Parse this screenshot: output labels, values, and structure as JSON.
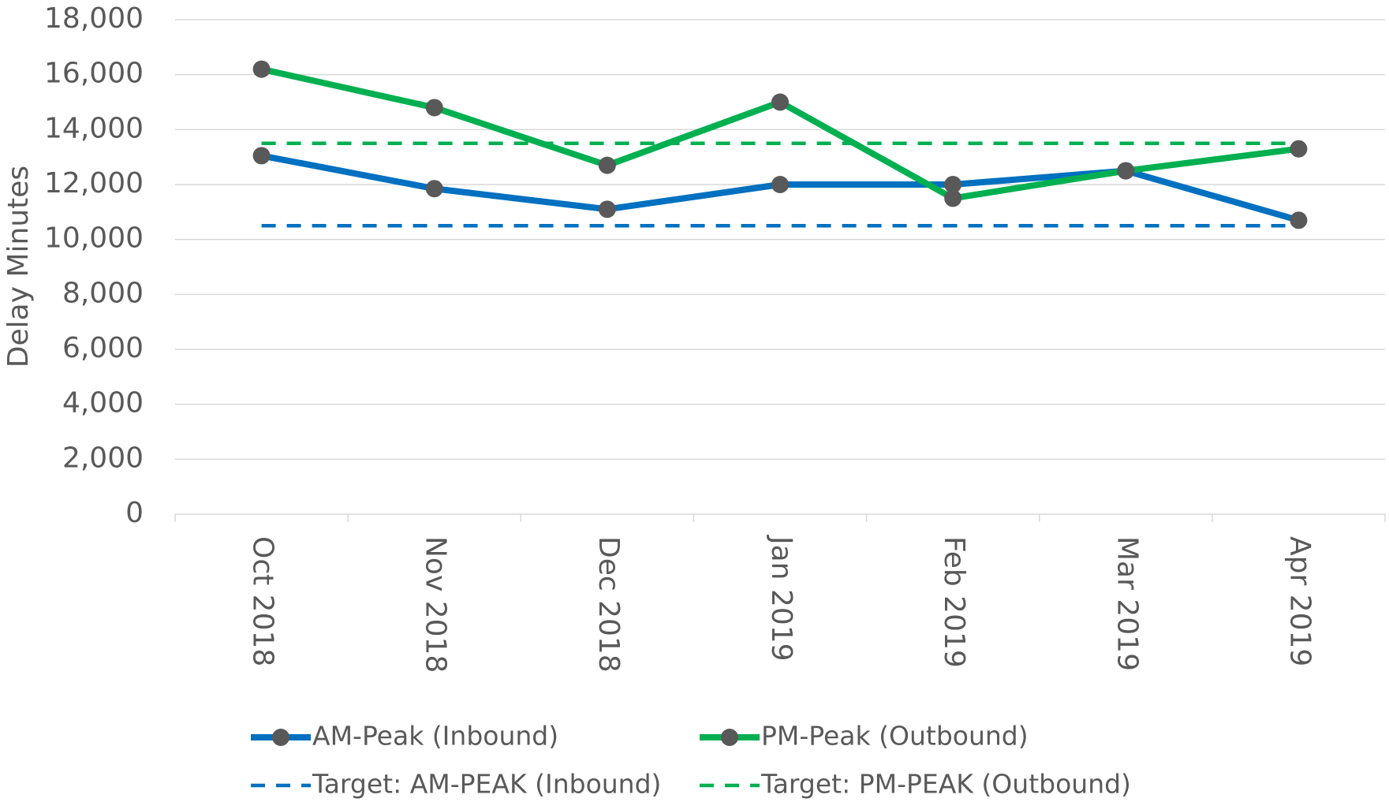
{
  "chart_data": {
    "type": "line",
    "ylabel": "Delay Minutes",
    "categories": [
      "Oct 2018",
      "Nov 2018",
      "Dec 2018",
      "Jan 2019",
      "Feb 2019",
      "Mar 2019",
      "Apr 2019"
    ],
    "series": [
      {
        "name": "AM-Peak (Inbound)",
        "color": "#0070c0",
        "dashed": false,
        "markers": true,
        "values": [
          13050,
          11850,
          11100,
          12000,
          12000,
          12500,
          10700
        ]
      },
      {
        "name": "PM-Peak (Outbound)",
        "color": "#00b050",
        "dashed": false,
        "markers": true,
        "values": [
          16200,
          14800,
          12700,
          15000,
          11500,
          12500,
          13300
        ]
      },
      {
        "name": "Target: AM-PEAK (Inbound)",
        "color": "#0070c0",
        "dashed": true,
        "markers": false,
        "values": [
          10500,
          10500,
          10500,
          10500,
          10500,
          10500,
          10500
        ]
      },
      {
        "name": "Target: PM-PEAK (Outbound)",
        "color": "#00b050",
        "dashed": true,
        "markers": false,
        "values": [
          13500,
          13500,
          13500,
          13500,
          13500,
          13500,
          13500
        ]
      }
    ],
    "ylim": [
      0,
      18000
    ],
    "yticks": [
      {
        "value": 0,
        "label": "0"
      },
      {
        "value": 2000,
        "label": "2,000"
      },
      {
        "value": 4000,
        "label": "4,000"
      },
      {
        "value": 6000,
        "label": "6,000"
      },
      {
        "value": 8000,
        "label": "8,000"
      },
      {
        "value": 10000,
        "label": "10,000"
      },
      {
        "value": 12000,
        "label": "12,000"
      },
      {
        "value": 14000,
        "label": "14,000"
      },
      {
        "value": 16000,
        "label": "16,000"
      },
      {
        "value": 18000,
        "label": "18,000"
      }
    ],
    "grid": true,
    "legend": "bottom"
  }
}
